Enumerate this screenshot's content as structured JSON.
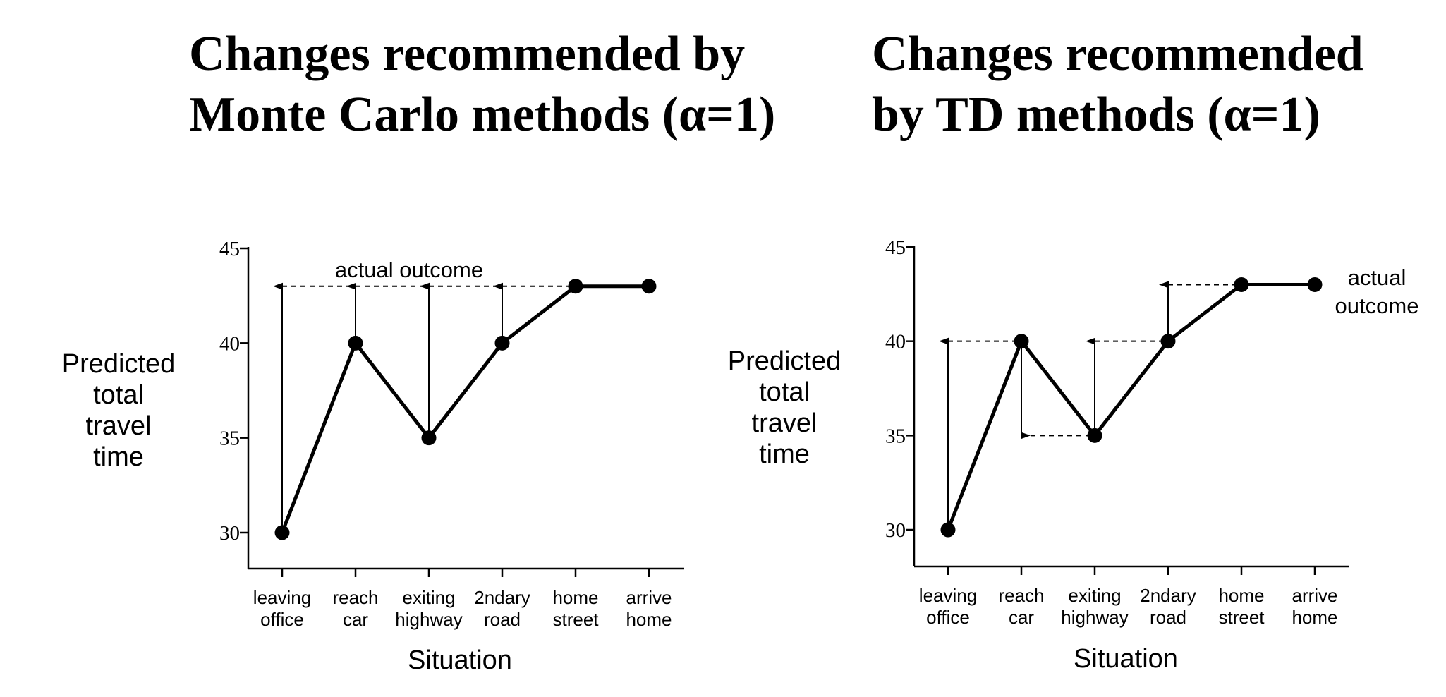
{
  "titles": {
    "left": [
      "Changes recommended by",
      "Monte Carlo methods (α=1)"
    ],
    "right": [
      "Changes recommended",
      "by TD methods (α=1)"
    ]
  },
  "chart_data": [
    {
      "type": "line",
      "title": "",
      "xlabel": "Situation",
      "ylabel": "Predicted total travel time",
      "ylabel_lines": [
        "Predicted",
        "total",
        "travel",
        "time"
      ],
      "ylim": [
        30,
        45
      ],
      "yticks": [
        30,
        35,
        40,
        45
      ],
      "categories": [
        "leaving office",
        "reach car",
        "exiting highway",
        "2ndary road",
        "home street",
        "arrive home"
      ],
      "category_lines": [
        [
          "leaving",
          "office"
        ],
        [
          "reach",
          "car"
        ],
        [
          "exiting",
          "highway"
        ],
        [
          "2ndary",
          "road"
        ],
        [
          "home",
          "street"
        ],
        [
          "arrive",
          "home"
        ]
      ],
      "values": [
        30,
        40,
        35,
        40,
        43,
        43
      ],
      "annotation": "actual outcome",
      "updates": [
        {
          "from_index": 0,
          "from": 30,
          "to": 43
        },
        {
          "from_index": 1,
          "from": 40,
          "to": 43
        },
        {
          "from_index": 2,
          "from": 35,
          "to": 43
        },
        {
          "from_index": 3,
          "from": 40,
          "to": 43
        }
      ],
      "grid": false
    },
    {
      "type": "line",
      "title": "",
      "xlabel": "Situation",
      "ylabel": "Predicted total travel time",
      "ylabel_lines": [
        "Predicted",
        "total",
        "travel",
        "time"
      ],
      "ylim": [
        30,
        45
      ],
      "yticks": [
        30,
        35,
        40,
        45
      ],
      "categories": [
        "leaving office",
        "reach car",
        "exiting highway",
        "2ndary road",
        "home street",
        "arrive home"
      ],
      "category_lines": [
        [
          "leaving",
          "office"
        ],
        [
          "reach",
          "car"
        ],
        [
          "exiting",
          "highway"
        ],
        [
          "2ndary",
          "road"
        ],
        [
          "home",
          "street"
        ],
        [
          "arrive",
          "home"
        ]
      ],
      "values": [
        30,
        40,
        35,
        40,
        43,
        43
      ],
      "annotation": "actual outcome",
      "annotation_lines": [
        "actual",
        "outcome"
      ],
      "updates": [
        {
          "from_index": 0,
          "from": 30,
          "to": 40
        },
        {
          "from_index": 1,
          "from": 40,
          "to": 35
        },
        {
          "from_index": 2,
          "from": 35,
          "to": 40
        },
        {
          "from_index": 3,
          "from": 40,
          "to": 43
        }
      ],
      "grid": false
    }
  ]
}
